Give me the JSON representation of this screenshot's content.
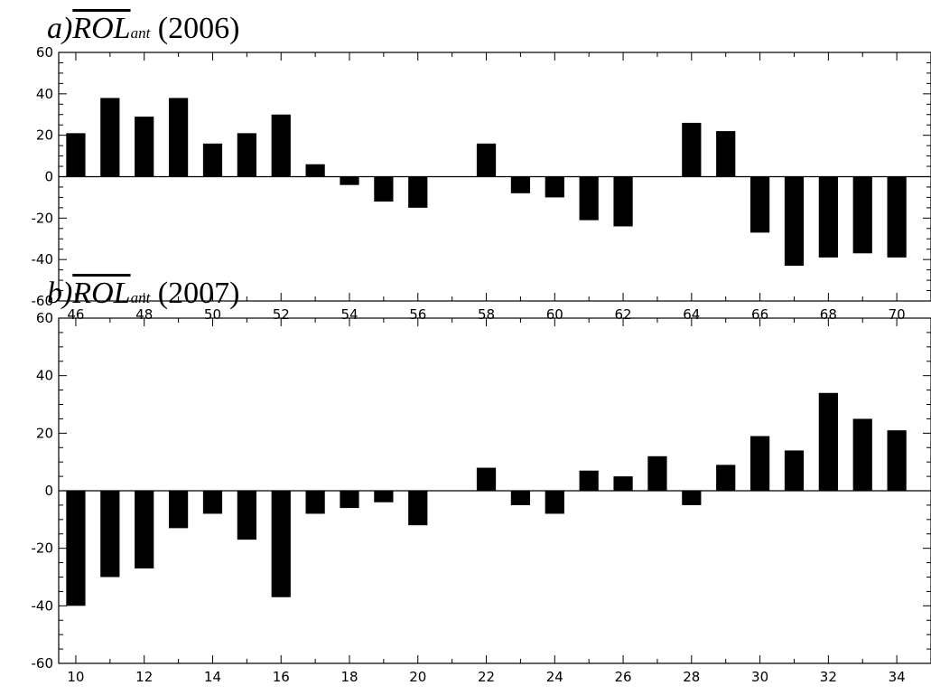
{
  "chart_data": [
    {
      "type": "bar",
      "title": {
        "prefix": "a)",
        "var": "ROL",
        "sub": "ant",
        "year": "(2006)"
      },
      "xlabel": "",
      "ylabel": "",
      "ylim": [
        -60,
        60
      ],
      "xlim": [
        45.5,
        71
      ],
      "yticks": [
        -60,
        -40,
        -20,
        0,
        20,
        40,
        60
      ],
      "xticks": [
        46,
        48,
        50,
        52,
        54,
        56,
        58,
        60,
        62,
        64,
        66,
        68,
        70
      ],
      "categories": [
        46,
        47,
        48,
        49,
        50,
        51,
        52,
        53,
        54,
        55,
        56,
        57,
        58,
        59,
        60,
        61,
        62,
        63,
        64,
        65,
        66,
        67,
        68,
        69,
        70
      ],
      "values": [
        21,
        38,
        29,
        38,
        16,
        21,
        30,
        6,
        -4,
        -12,
        -15,
        0,
        16,
        -8,
        -10,
        -21,
        -24,
        0,
        26,
        22,
        -27,
        -43,
        -39,
        -37,
        -39
      ],
      "grid": false,
      "bar_color": "#000000"
    },
    {
      "type": "bar",
      "title": {
        "prefix": "b)",
        "var": "ROL",
        "sub": "ant",
        "year": "(2007)"
      },
      "xlabel": "",
      "ylabel": "",
      "ylim": [
        -60,
        60
      ],
      "xlim": [
        9.5,
        35
      ],
      "yticks": [
        -60,
        -40,
        -20,
        0,
        20,
        40,
        60
      ],
      "xticks": [
        10,
        12,
        14,
        16,
        18,
        20,
        22,
        24,
        26,
        28,
        30,
        32,
        34
      ],
      "categories": [
        10,
        11,
        12,
        13,
        14,
        15,
        16,
        17,
        18,
        19,
        20,
        21,
        22,
        23,
        24,
        25,
        26,
        27,
        28,
        29,
        30,
        31,
        32,
        33,
        34
      ],
      "values": [
        -40,
        -30,
        -27,
        -13,
        -8,
        -17,
        -37,
        -8,
        -6,
        -4,
        -12,
        0,
        8,
        -5,
        -8,
        7,
        5,
        12,
        -5,
        9,
        19,
        14,
        34,
        25,
        21
      ],
      "grid": false,
      "bar_color": "#000000"
    }
  ]
}
